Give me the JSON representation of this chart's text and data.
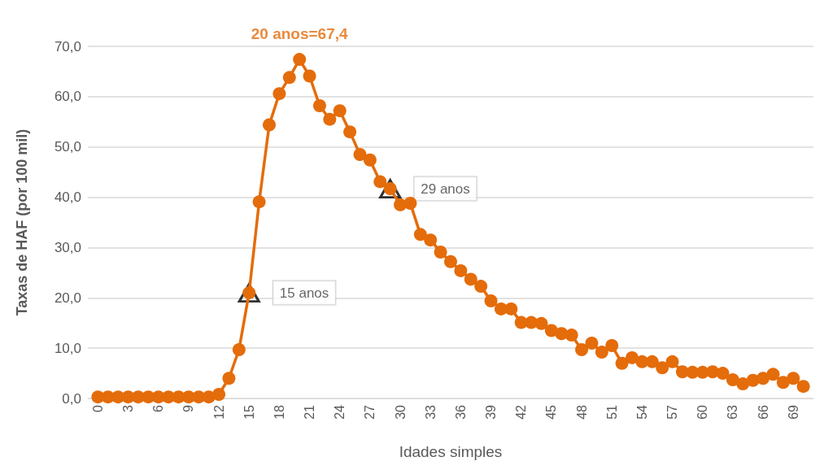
{
  "chart_data": {
    "type": "line",
    "xlabel": "Idades simples",
    "ylabel": "Taxas de HAF (por 100 mil)",
    "x": [
      0,
      1,
      2,
      3,
      4,
      5,
      6,
      7,
      8,
      9,
      10,
      11,
      12,
      13,
      14,
      15,
      16,
      17,
      18,
      19,
      20,
      21,
      22,
      23,
      24,
      25,
      26,
      27,
      28,
      29,
      30,
      31,
      32,
      33,
      34,
      35,
      36,
      37,
      38,
      39,
      40,
      41,
      42,
      43,
      44,
      45,
      46,
      47,
      48,
      49,
      50,
      51,
      52,
      53,
      54,
      55,
      56,
      57,
      58,
      59,
      60,
      61,
      62,
      63,
      64,
      65,
      66,
      67,
      68,
      69,
      70
    ],
    "xlim": [
      -1,
      71
    ],
    "xticks": [
      0,
      3,
      6,
      9,
      12,
      15,
      18,
      21,
      24,
      27,
      30,
      33,
      36,
      39,
      42,
      45,
      48,
      51,
      54,
      57,
      60,
      63,
      66,
      69
    ],
    "series": [
      {
        "color": "#e46c0a",
        "values": [
          0.3,
          0.3,
          0.3,
          0.3,
          0.3,
          0.3,
          0.3,
          0.3,
          0.3,
          0.3,
          0.3,
          0.3,
          0.8,
          4.0,
          9.7,
          21.0,
          39.1,
          54.4,
          60.6,
          63.8,
          67.4,
          64.1,
          58.2,
          55.5,
          57.2,
          53.0,
          48.5,
          47.4,
          43.1,
          41.7,
          38.5,
          38.8,
          32.6,
          31.5,
          29.1,
          27.2,
          25.4,
          23.7,
          22.3,
          19.4,
          17.8,
          17.8,
          15.1,
          15.1,
          14.9,
          13.5,
          12.9,
          12.6,
          9.7,
          11.0,
          9.2,
          10.5,
          7.0,
          8.1,
          7.3,
          7.3,
          6.1,
          7.3,
          5.3,
          5.2,
          5.2,
          5.3,
          5.0,
          3.7,
          2.9,
          3.6,
          4.0,
          4.8,
          3.2,
          4.0,
          2.4
        ]
      }
    ],
    "ylim": [
      0,
      70
    ],
    "yticks": [
      {
        "value": 0,
        "label": "0,0"
      },
      {
        "value": 10,
        "label": "10,0"
      },
      {
        "value": 20,
        "label": "20,0"
      },
      {
        "value": 30,
        "label": "30,0"
      },
      {
        "value": 40,
        "label": "40,0"
      },
      {
        "value": 50,
        "label": "50,0"
      },
      {
        "value": 60,
        "label": "60,0"
      },
      {
        "value": 70,
        "label": "70,0"
      }
    ],
    "annotations": [
      {
        "text": "20 anos=67,4",
        "x": 20,
        "y": 67.4
      },
      {
        "text": "15 anos",
        "x": 15,
        "y": 21.0
      },
      {
        "text": "29 anos",
        "x": 29,
        "y": 41.7
      }
    ],
    "grid": "y",
    "marker": "circle",
    "line_style": "solid"
  }
}
